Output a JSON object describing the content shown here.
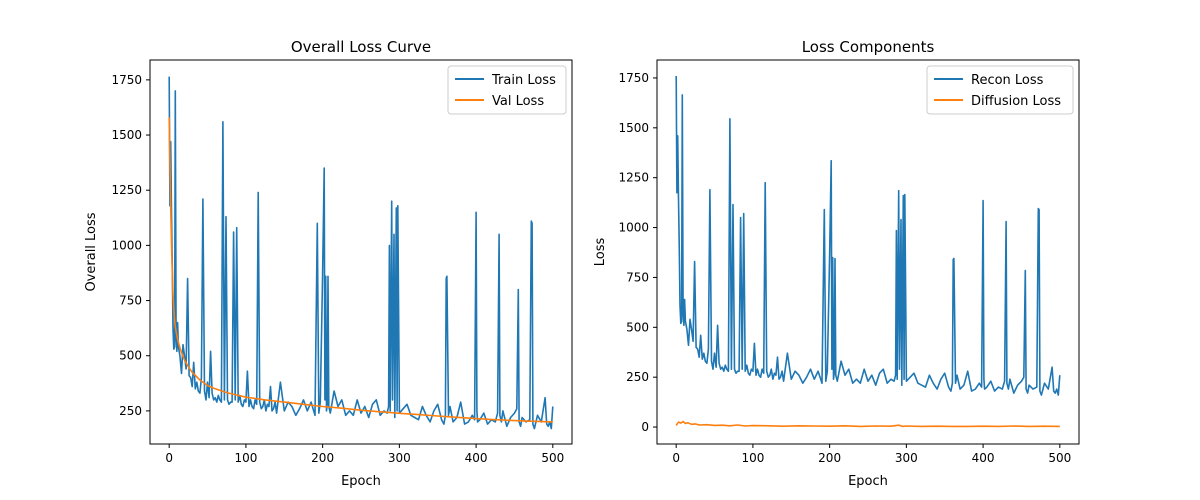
{
  "colors": {
    "train": "#1f77b4",
    "val": "#ff7f0e",
    "axis": "#000000",
    "legend_border": "#cccccc"
  },
  "chart_data": [
    {
      "type": "line",
      "title": "Overall Loss Curve",
      "xlabel": "Epoch",
      "ylabel": "Overall Loss",
      "xlim": [
        -25,
        525
      ],
      "ylim": [
        100,
        1840
      ],
      "xticks": [
        0,
        100,
        200,
        300,
        400,
        500
      ],
      "yticks": [
        250,
        500,
        750,
        1000,
        1250,
        1500,
        1750
      ],
      "grid": false,
      "legend": "top-right",
      "series": [
        {
          "name": "Train Loss",
          "color": "#1f77b4",
          "x": [
            0,
            1,
            2,
            3,
            4,
            5,
            6,
            7,
            8,
            9,
            10,
            11,
            12,
            14,
            16,
            18,
            20,
            22,
            24,
            26,
            28,
            30,
            32,
            34,
            36,
            38,
            40,
            42,
            44,
            46,
            48,
            50,
            52,
            54,
            56,
            58,
            60,
            62,
            64,
            66,
            68,
            70,
            72,
            74,
            76,
            78,
            80,
            82,
            84,
            86,
            88,
            90,
            92,
            94,
            96,
            98,
            100,
            102,
            104,
            106,
            108,
            110,
            112,
            114,
            116,
            118,
            120,
            122,
            124,
            126,
            128,
            130,
            132,
            134,
            136,
            138,
            140,
            145,
            150,
            155,
            160,
            165,
            170,
            175,
            180,
            185,
            190,
            193,
            195,
            197,
            200,
            202,
            203,
            204,
            205,
            206,
            207,
            208,
            210,
            215,
            220,
            225,
            230,
            235,
            240,
            245,
            250,
            255,
            260,
            265,
            270,
            275,
            280,
            284,
            286,
            287,
            288,
            290,
            291,
            293,
            294,
            296,
            297,
            298,
            300,
            305,
            310,
            315,
            320,
            325,
            330,
            335,
            340,
            345,
            350,
            355,
            358,
            360,
            361,
            362,
            364,
            366,
            370,
            375,
            380,
            385,
            390,
            395,
            398,
            400,
            401,
            402,
            405,
            410,
            415,
            420,
            425,
            428,
            430,
            431,
            433,
            435,
            440,
            445,
            450,
            453,
            455,
            456,
            458,
            460,
            465,
            470,
            472,
            473,
            474,
            476,
            480,
            485,
            490,
            492,
            494,
            496,
            498,
            500
          ],
          "y": [
            1765,
            1180,
            1470,
            1150,
            900,
            620,
            530,
            540,
            1700,
            580,
            520,
            650,
            540,
            500,
            420,
            550,
            500,
            440,
            850,
            410,
            400,
            360,
            470,
            350,
            380,
            340,
            330,
            400,
            1210,
            340,
            300,
            380,
            310,
            520,
            330,
            300,
            310,
            290,
            320,
            300,
            290,
            1560,
            300,
            1130,
            300,
            280,
            290,
            290,
            1060,
            300,
            1080,
            290,
            320,
            280,
            270,
            300,
            290,
            430,
            270,
            300,
            270,
            260,
            300,
            280,
            1240,
            290,
            260,
            270,
            300,
            250,
            280,
            270,
            360,
            250,
            260,
            290,
            240,
            380,
            250,
            290,
            270,
            230,
            260,
            300,
            250,
            290,
            230,
            1100,
            240,
            290,
            870,
            1350,
            300,
            860,
            250,
            280,
            860,
            270,
            240,
            340,
            270,
            300,
            230,
            250,
            230,
            300,
            240,
            270,
            220,
            280,
            300,
            230,
            250,
            240,
            270,
            1000,
            250,
            1200,
            300,
            1050,
            220,
            1170,
            250,
            1180,
            240,
            260,
            280,
            230,
            220,
            210,
            270,
            230,
            200,
            250,
            280,
            210,
            190,
            230,
            850,
            860,
            230,
            270,
            200,
            220,
            290,
            190,
            200,
            230,
            210,
            1150,
            250,
            200,
            210,
            240,
            190,
            210,
            200,
            240,
            1050,
            230,
            200,
            250,
            180,
            220,
            240,
            260,
            800,
            200,
            180,
            220,
            200,
            210,
            1110,
            1100,
            190,
            170,
            230,
            200,
            310,
            190,
            180,
            200,
            170,
            270
          ]
        },
        {
          "name": "Val Loss",
          "color": "#ff7f0e",
          "x": [
            0,
            1,
            2,
            3,
            4,
            5,
            6,
            7,
            8,
            10,
            12,
            15,
            20,
            25,
            30,
            40,
            50,
            60,
            75,
            100,
            125,
            150,
            175,
            200,
            225,
            250,
            275,
            300,
            325,
            350,
            375,
            400,
            425,
            450,
            475,
            500
          ],
          "y": [
            1580,
            1380,
            1180,
            1010,
            880,
            780,
            710,
            660,
            630,
            590,
            560,
            525,
            480,
            450,
            425,
            390,
            365,
            350,
            333,
            312,
            300,
            290,
            280,
            270,
            262,
            253,
            246,
            239,
            233,
            227,
            221,
            215,
            210,
            206,
            203,
            200
          ]
        }
      ]
    },
    {
      "type": "line",
      "title": "Loss Components",
      "xlabel": "Epoch",
      "ylabel": "Loss",
      "xlim": [
        -25,
        525
      ],
      "ylim": [
        -85,
        1840
      ],
      "xticks": [
        0,
        100,
        200,
        300,
        400,
        500
      ],
      "yticks": [
        0,
        250,
        500,
        750,
        1000,
        1250,
        1500,
        1750
      ],
      "grid": false,
      "legend": "top-right",
      "series": [
        {
          "name": "Recon Loss",
          "color": "#1f77b4",
          "x": [
            0,
            1,
            2,
            3,
            4,
            5,
            6,
            7,
            8,
            9,
            10,
            11,
            12,
            14,
            16,
            18,
            20,
            22,
            24,
            26,
            28,
            30,
            32,
            34,
            36,
            38,
            40,
            42,
            44,
            46,
            48,
            50,
            52,
            54,
            56,
            58,
            60,
            62,
            64,
            66,
            68,
            70,
            72,
            74,
            76,
            78,
            80,
            82,
            84,
            86,
            88,
            90,
            92,
            94,
            96,
            98,
            100,
            102,
            104,
            106,
            108,
            110,
            112,
            114,
            116,
            118,
            120,
            122,
            124,
            126,
            128,
            130,
            132,
            134,
            136,
            138,
            140,
            145,
            150,
            155,
            160,
            165,
            170,
            175,
            180,
            185,
            190,
            193,
            195,
            197,
            200,
            202,
            203,
            204,
            205,
            206,
            207,
            208,
            210,
            215,
            220,
            225,
            230,
            235,
            240,
            245,
            250,
            255,
            260,
            265,
            270,
            275,
            280,
            284,
            286,
            287,
            288,
            290,
            291,
            293,
            294,
            296,
            297,
            298,
            300,
            305,
            310,
            315,
            320,
            325,
            330,
            335,
            340,
            345,
            350,
            355,
            358,
            360,
            361,
            362,
            364,
            366,
            370,
            375,
            380,
            385,
            390,
            395,
            398,
            400,
            401,
            402,
            405,
            410,
            415,
            420,
            425,
            428,
            430,
            431,
            433,
            435,
            440,
            445,
            450,
            453,
            455,
            456,
            458,
            460,
            465,
            470,
            472,
            473,
            474,
            476,
            480,
            485,
            490,
            492,
            494,
            496,
            498,
            500
          ],
          "y": [
            1760,
            1175,
            1460,
            1145,
            890,
            610,
            520,
            530,
            1665,
            570,
            510,
            640,
            530,
            490,
            410,
            540,
            490,
            430,
            830,
            400,
            390,
            350,
            460,
            340,
            370,
            330,
            320,
            390,
            1190,
            330,
            290,
            370,
            300,
            510,
            320,
            290,
            300,
            280,
            310,
            290,
            280,
            1545,
            290,
            1115,
            290,
            270,
            280,
            280,
            1050,
            290,
            1070,
            280,
            310,
            270,
            260,
            290,
            280,
            420,
            260,
            290,
            260,
            250,
            290,
            270,
            1225,
            280,
            250,
            260,
            290,
            240,
            270,
            260,
            350,
            240,
            250,
            280,
            230,
            370,
            240,
            280,
            260,
            220,
            250,
            290,
            240,
            280,
            220,
            1090,
            230,
            280,
            855,
            1335,
            290,
            850,
            240,
            270,
            845,
            260,
            230,
            330,
            260,
            290,
            220,
            240,
            220,
            290,
            230,
            260,
            210,
            270,
            290,
            220,
            240,
            230,
            260,
            985,
            240,
            1185,
            290,
            1040,
            210,
            1160,
            240,
            1165,
            230,
            250,
            270,
            220,
            210,
            200,
            260,
            220,
            190,
            240,
            270,
            200,
            180,
            220,
            840,
            845,
            220,
            260,
            190,
            210,
            280,
            180,
            190,
            220,
            200,
            1135,
            240,
            190,
            200,
            230,
            180,
            200,
            190,
            230,
            1030,
            220,
            190,
            240,
            170,
            210,
            230,
            250,
            785,
            190,
            170,
            210,
            190,
            200,
            1095,
            1090,
            180,
            160,
            220,
            190,
            300,
            180,
            170,
            190,
            160,
            260
          ]
        },
        {
          "name": "Diffusion Loss",
          "color": "#ff7f0e",
          "x": [
            0,
            3,
            6,
            9,
            12,
            15,
            20,
            25,
            30,
            40,
            50,
            60,
            70,
            80,
            90,
            100,
            120,
            140,
            160,
            180,
            200,
            220,
            240,
            260,
            280,
            290,
            295,
            300,
            320,
            340,
            360,
            380,
            400,
            420,
            440,
            460,
            480,
            500
          ],
          "y": [
            8,
            25,
            20,
            28,
            18,
            22,
            14,
            16,
            10,
            12,
            8,
            9,
            6,
            10,
            5,
            7,
            6,
            4,
            6,
            5,
            4,
            6,
            3,
            5,
            4,
            9,
            3,
            5,
            3,
            4,
            3,
            3,
            4,
            3,
            5,
            3,
            4,
            3
          ]
        }
      ]
    }
  ]
}
